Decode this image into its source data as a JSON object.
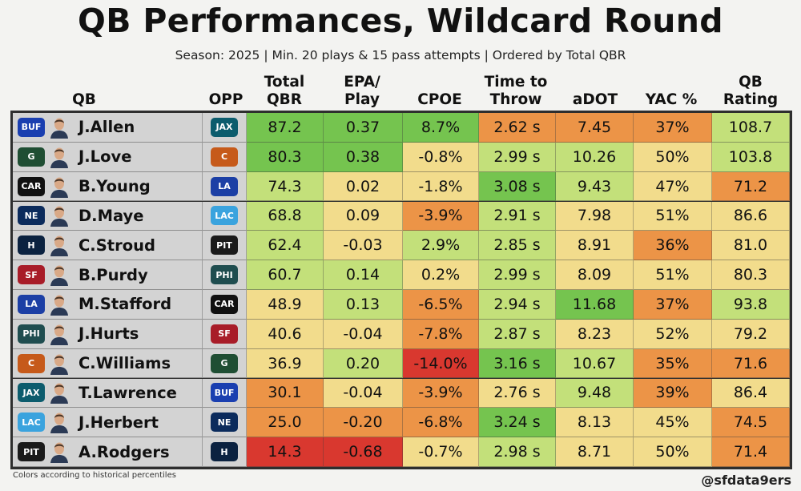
{
  "title": "QB Performances, Wildcard Round",
  "subtitle": "Season: 2025 | Min. 20 plays & 15 pass attempts | Ordered by Total QBR",
  "footnote": "Colors according to historical percentiles",
  "credit": "@sfdata9ers",
  "colors": {
    "red": "#d9382f",
    "orange": "#ec9447",
    "yellow": "#f2dc8c",
    "lightgreen": "#c3e07a",
    "green": "#75c44f"
  },
  "chart_data": {
    "type": "table",
    "title": "QB Performances, Wildcard Round",
    "columns": [
      "QB",
      "OPP",
      "Total QBR",
      "EPA/ Play",
      "CPOE",
      "Time to Throw",
      "aDOT",
      "YAC %",
      "QB Rating"
    ],
    "header_lines": [
      [
        "QB"
      ],
      [
        "OPP"
      ],
      [
        "Total",
        "QBR"
      ],
      [
        "EPA/",
        "Play"
      ],
      [
        "CPOE"
      ],
      [
        "Time to",
        "Throw"
      ],
      [
        "aDOT"
      ],
      [
        "YAC %"
      ],
      [
        "QB",
        "Rating"
      ]
    ],
    "rows": [
      {
        "team": "BUF",
        "qb": "J.Allen",
        "opp": "JAX",
        "values": [
          "87.2",
          "0.37",
          "8.7%",
          "2.62 s",
          "7.45",
          "37%",
          "108.7"
        ],
        "colors": [
          "green",
          "green",
          "green",
          "orange",
          "orange",
          "orange",
          "lightgreen"
        ]
      },
      {
        "team": "GB",
        "qb": "J.Love",
        "opp": "CHI",
        "values": [
          "80.3",
          "0.38",
          "-0.8%",
          "2.99 s",
          "10.26",
          "50%",
          "103.8"
        ],
        "colors": [
          "green",
          "green",
          "yellow",
          "lightgreen",
          "lightgreen",
          "yellow",
          "lightgreen"
        ]
      },
      {
        "team": "CAR",
        "qb": "B.Young",
        "opp": "LAR",
        "values": [
          "74.3",
          "0.02",
          "-1.8%",
          "3.08 s",
          "9.43",
          "47%",
          "71.2"
        ],
        "colors": [
          "lightgreen",
          "yellow",
          "yellow",
          "green",
          "lightgreen",
          "yellow",
          "orange"
        ]
      },
      {
        "team": "NE",
        "qb": "D.Maye",
        "opp": "LAC",
        "values": [
          "68.8",
          "0.09",
          "-3.9%",
          "2.91 s",
          "7.98",
          "51%",
          "86.6"
        ],
        "colors": [
          "lightgreen",
          "yellow",
          "orange",
          "lightgreen",
          "yellow",
          "yellow",
          "yellow"
        ]
      },
      {
        "team": "HOU",
        "qb": "C.Stroud",
        "opp": "PIT",
        "values": [
          "62.4",
          "-0.03",
          "2.9%",
          "2.85 s",
          "8.91",
          "36%",
          "81.0"
        ],
        "colors": [
          "lightgreen",
          "yellow",
          "lightgreen",
          "lightgreen",
          "yellow",
          "orange",
          "yellow"
        ]
      },
      {
        "team": "SF",
        "qb": "B.Purdy",
        "opp": "PHI",
        "values": [
          "60.7",
          "0.14",
          "0.2%",
          "2.99 s",
          "8.09",
          "51%",
          "80.3"
        ],
        "colors": [
          "lightgreen",
          "lightgreen",
          "yellow",
          "lightgreen",
          "yellow",
          "yellow",
          "yellow"
        ]
      },
      {
        "team": "LAR",
        "qb": "M.Stafford",
        "opp": "CAR",
        "values": [
          "48.9",
          "0.13",
          "-6.5%",
          "2.94 s",
          "11.68",
          "37%",
          "93.8"
        ],
        "colors": [
          "yellow",
          "lightgreen",
          "orange",
          "lightgreen",
          "green",
          "orange",
          "lightgreen"
        ]
      },
      {
        "team": "PHI",
        "qb": "J.Hurts",
        "opp": "SF",
        "values": [
          "40.6",
          "-0.04",
          "-7.8%",
          "2.87 s",
          "8.23",
          "52%",
          "79.2"
        ],
        "colors": [
          "yellow",
          "yellow",
          "orange",
          "lightgreen",
          "yellow",
          "yellow",
          "yellow"
        ]
      },
      {
        "team": "CHI",
        "qb": "C.Williams",
        "opp": "GB",
        "values": [
          "36.9",
          "0.20",
          "-14.0%",
          "3.16 s",
          "10.67",
          "35%",
          "71.6"
        ],
        "colors": [
          "yellow",
          "lightgreen",
          "red",
          "green",
          "lightgreen",
          "orange",
          "orange"
        ]
      },
      {
        "team": "JAX",
        "qb": "T.Lawrence",
        "opp": "BUF",
        "values": [
          "30.1",
          "-0.04",
          "-3.9%",
          "2.76 s",
          "9.48",
          "39%",
          "86.4"
        ],
        "colors": [
          "orange",
          "yellow",
          "orange",
          "yellow",
          "lightgreen",
          "orange",
          "yellow"
        ]
      },
      {
        "team": "LAC",
        "qb": "J.Herbert",
        "opp": "NE",
        "values": [
          "25.0",
          "-0.20",
          "-6.8%",
          "3.24 s",
          "8.13",
          "45%",
          "74.5"
        ],
        "colors": [
          "orange",
          "orange",
          "orange",
          "green",
          "yellow",
          "yellow",
          "orange"
        ]
      },
      {
        "team": "PIT",
        "qb": "A.Rodgers",
        "opp": "HOU",
        "values": [
          "14.3",
          "-0.68",
          "-0.7%",
          "2.98 s",
          "8.71",
          "50%",
          "71.4"
        ],
        "colors": [
          "red",
          "red",
          "yellow",
          "lightgreen",
          "yellow",
          "yellow",
          "orange"
        ]
      }
    ]
  },
  "team_logos": {
    "BUF": {
      "label": "BUF",
      "color": "#1a3fb0",
      "icon": "bills-logo-icon"
    },
    "GB": {
      "label": "G",
      "color": "#1f4e33",
      "icon": "packers-logo-icon"
    },
    "CAR": {
      "label": "CAR",
      "color": "#111111",
      "icon": "panthers-logo-icon"
    },
    "NE": {
      "label": "NE",
      "color": "#0b2b5c",
      "icon": "patriots-logo-icon"
    },
    "HOU": {
      "label": "H",
      "color": "#0b2240",
      "icon": "texans-logo-icon"
    },
    "SF": {
      "label": "SF",
      "color": "#a81c28",
      "icon": "49ers-logo-icon"
    },
    "LAR": {
      "label": "LA",
      "color": "#1c3fa5",
      "icon": "rams-logo-icon"
    },
    "PHI": {
      "label": "PHI",
      "color": "#1f4d4f",
      "icon": "eagles-logo-icon"
    },
    "CHI": {
      "label": "C",
      "color": "#c65a1a",
      "icon": "bears-logo-icon"
    },
    "JAX": {
      "label": "JAX",
      "color": "#0c5c6d",
      "icon": "jaguars-logo-icon"
    },
    "LAC": {
      "label": "LAC",
      "color": "#3aa3de",
      "icon": "chargers-logo-icon"
    },
    "PIT": {
      "label": "PIT",
      "color": "#1a1a1a",
      "icon": "steelers-logo-icon"
    }
  }
}
